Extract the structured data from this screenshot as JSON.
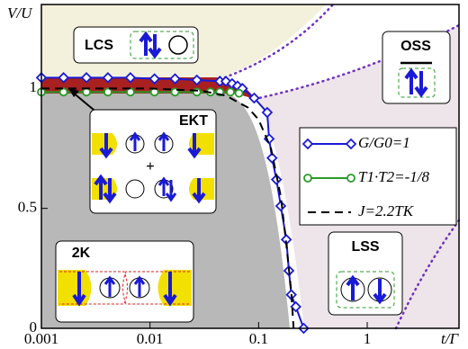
{
  "chart_data": {
    "type": "line",
    "xlabel": "t/Γ",
    "ylabel": "V/U",
    "xscale": "log",
    "xlim": [
      0.001,
      7
    ],
    "ylim": [
      0,
      1.35
    ],
    "xticks": [
      0.001,
      0.01,
      0.1,
      1
    ],
    "yticks": [
      0,
      0.5,
      1
    ],
    "series": [
      {
        "name": "G/G0=1",
        "color": "#1a1ad6",
        "marker": "diamond",
        "dash": false,
        "x": [
          0.001,
          0.0016,
          0.0026,
          0.0041,
          0.0066,
          0.011,
          0.017,
          0.027,
          0.044,
          0.05,
          0.057,
          0.064,
          0.071,
          0.091,
          0.12,
          0.125,
          0.133,
          0.146,
          0.16,
          0.18,
          0.19,
          0.2,
          0.22,
          0.26
        ],
        "values": [
          1.045,
          1.045,
          1.045,
          1.045,
          1.045,
          1.04,
          1.04,
          1.035,
          1.03,
          1.03,
          1.02,
          1.01,
          1.0,
          0.96,
          0.9,
          0.79,
          0.71,
          0.62,
          0.51,
          0.37,
          0.24,
          0.14,
          0.09,
          0
        ]
      },
      {
        "name": "T1·T2=-1/8",
        "color": "#2a9a2a",
        "marker": "circle",
        "dash": false,
        "x": [
          0.001,
          0.0016,
          0.0026,
          0.0041,
          0.0066,
          0.011,
          0.017,
          0.027,
          0.036,
          0.044,
          0.055,
          0.066
        ],
        "values": [
          0.985,
          0.985,
          0.985,
          0.985,
          0.985,
          0.985,
          0.985,
          0.985,
          0.985,
          0.985,
          0.985,
          0.98
        ]
      },
      {
        "name": "J=2.2TK",
        "color": "#000000",
        "marker": "none",
        "dash": true,
        "x": [
          0.001,
          0.01,
          0.03,
          0.05,
          0.08,
          0.1,
          0.13,
          0.16,
          0.18,
          0.2,
          0.21
        ],
        "values": [
          1.0,
          1.0,
          0.99,
          0.97,
          0.92,
          0.87,
          0.75,
          0.55,
          0.35,
          0.15,
          0
        ]
      }
    ],
    "regions": [
      "LCS",
      "OSS",
      "EKT",
      "2K",
      "LSS"
    ]
  }
}
